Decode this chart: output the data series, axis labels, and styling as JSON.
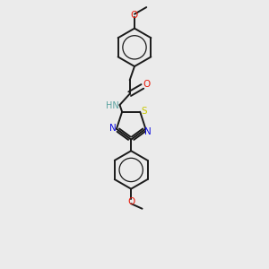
{
  "background_color": "#ebebeb",
  "bond_color": "#1a1a1a",
  "figsize": [
    3.0,
    3.0
  ],
  "dpi": 100,
  "lw": 1.4,
  "lw_inner": 0.9,
  "ring_r": 0.72,
  "atoms": {
    "N_amide": {
      "color": "#5ba3a0",
      "label": "HN"
    },
    "O_carbonyl": {
      "color": "#e8190a",
      "label": "O"
    },
    "O_methoxy1": {
      "color": "#e8190a",
      "label": "O"
    },
    "O_methoxy2": {
      "color": "#e8190a",
      "label": "O"
    },
    "S": {
      "color": "#c8c800",
      "label": "S"
    },
    "N1": {
      "color": "#1010e0",
      "label": "N"
    },
    "N2": {
      "color": "#1010e0",
      "label": "N"
    }
  },
  "xlim": [
    0,
    8
  ],
  "ylim": [
    0,
    10
  ]
}
